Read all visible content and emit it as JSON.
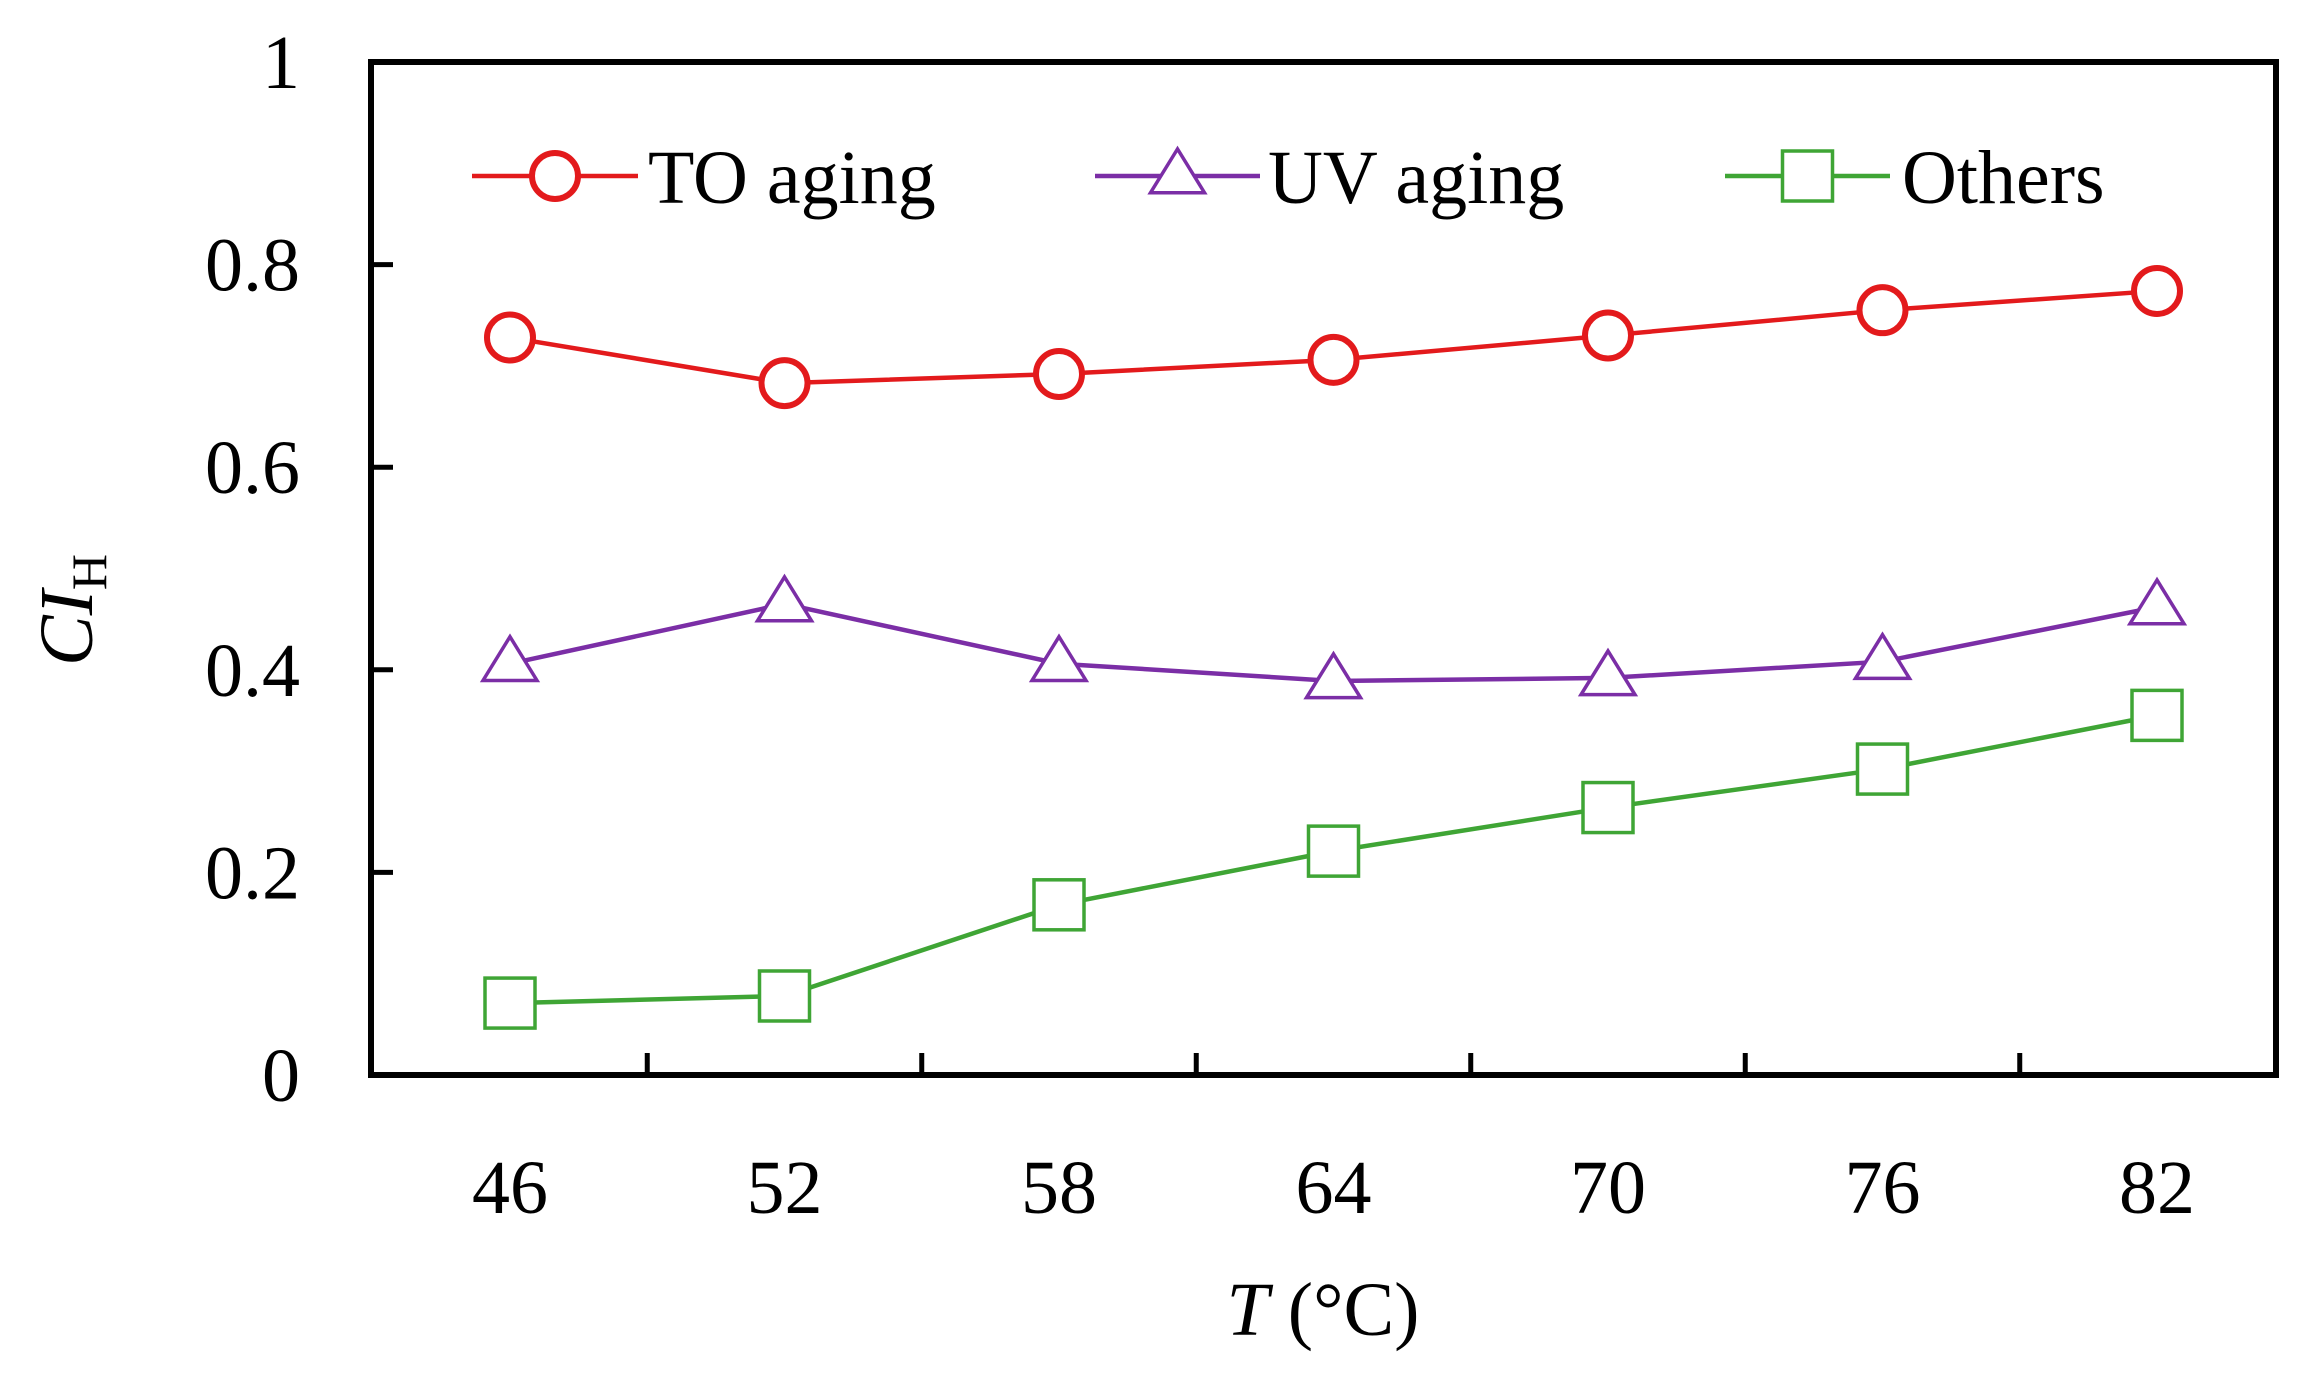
{
  "chart_data": {
    "type": "line",
    "title": "",
    "x": [
      46,
      52,
      58,
      64,
      70,
      76,
      82
    ],
    "categories": [
      "46",
      "52",
      "58",
      "64",
      "70",
      "76",
      "82"
    ],
    "xlabel": {
      "italic": "T",
      "rest": " (°C)"
    },
    "ylabel": {
      "main": "CI",
      "sub": "H"
    },
    "ylim": [
      0,
      1
    ],
    "yticks": [
      0,
      0.2,
      0.4,
      0.6,
      0.8,
      1
    ],
    "ytick_labels": [
      "0",
      "0.2",
      "0.4",
      "0.6",
      "0.8",
      "1"
    ],
    "grid": false,
    "legend_position": "top",
    "series": [
      {
        "name": "TO aging",
        "color": "#e31a1c",
        "marker": "circle",
        "values": [
          0.728,
          0.683,
          0.692,
          0.706,
          0.73,
          0.755,
          0.774
        ]
      },
      {
        "name": "UV aging",
        "color": "#7b2ea6",
        "marker": "triangle",
        "values": [
          0.406,
          0.465,
          0.406,
          0.389,
          0.392,
          0.408,
          0.462
        ]
      },
      {
        "name": "Others",
        "color": "#3fa535",
        "marker": "square",
        "values": [
          0.071,
          0.078,
          0.168,
          0.221,
          0.264,
          0.302,
          0.355
        ]
      }
    ]
  }
}
